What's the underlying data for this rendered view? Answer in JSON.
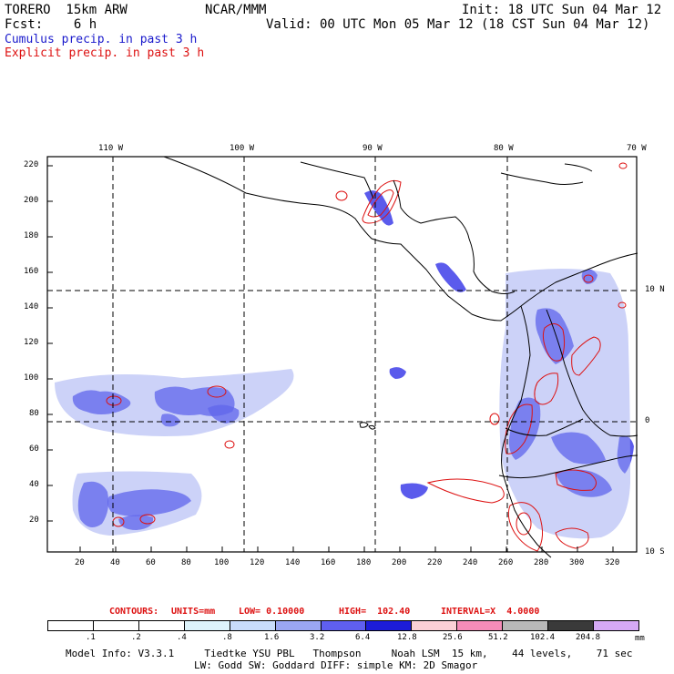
{
  "header": {
    "model": "TORERO  15km ARW",
    "org": "NCAR/MMM",
    "init": "Init: 18 UTC Sun 04 Mar 12",
    "fcst": "Fcst:    6 h",
    "valid": "Valid: 00 UTC Mon 05 Mar 12 (18 CST Sun 04 Mar 12)",
    "cumulus_label": "Cumulus precip. in past 3 h",
    "explicit_label": "Explicit precip. in past 3 h"
  },
  "map": {
    "lon_labels": [
      "110 W",
      "100 W",
      "90 W",
      "80 W",
      "70 W"
    ],
    "lat_labels": [
      "10 N",
      "0",
      "10 S"
    ],
    "y_ticks": [
      "220",
      "200",
      "180",
      "160",
      "140",
      "120",
      "100",
      "80",
      "60",
      "40",
      "20"
    ],
    "x_ticks": [
      "20",
      "40",
      "60",
      "80",
      "100",
      "120",
      "140",
      "160",
      "180",
      "200",
      "220",
      "240",
      "260",
      "280",
      "300",
      "320"
    ],
    "colors": {
      "cumulus": "#2424e6",
      "explicit": "#dd1111",
      "coast": "#000000"
    }
  },
  "contours": {
    "prefix": "CONTOURS:",
    "units": "UNITS=mm",
    "low": "LOW= 0.10000",
    "high": "HIGH=  102.40",
    "interval": "INTERVAL=X  4.0000"
  },
  "colorbar": {
    "unit": "mm",
    "labels": [
      ".1",
      ".2",
      ".4",
      ".8",
      "1.6",
      "3.2",
      "6.4",
      "12.8",
      "25.6",
      "51.2",
      "102.4",
      "204.8"
    ],
    "colors": [
      "#ffffff",
      "#ffffff",
      "#ffffff",
      "#ddf3fb",
      "#c9dcfb",
      "#9aa6f2",
      "#5f5ff0",
      "#1c1cd8",
      "#fbd0d6",
      "#f58cb8",
      "#b8b8b8",
      "#3a3a3a",
      "#d5a9f5"
    ]
  },
  "footer": {
    "line1": "Model Info: V3.3.1     Tiedtke YSU PBL   Thompson     Noah LSM  15 km,    44 levels,    71 sec",
    "line2": "LW: Godd SW: Goddard DIFF: simple KM: 2D Smagor"
  }
}
